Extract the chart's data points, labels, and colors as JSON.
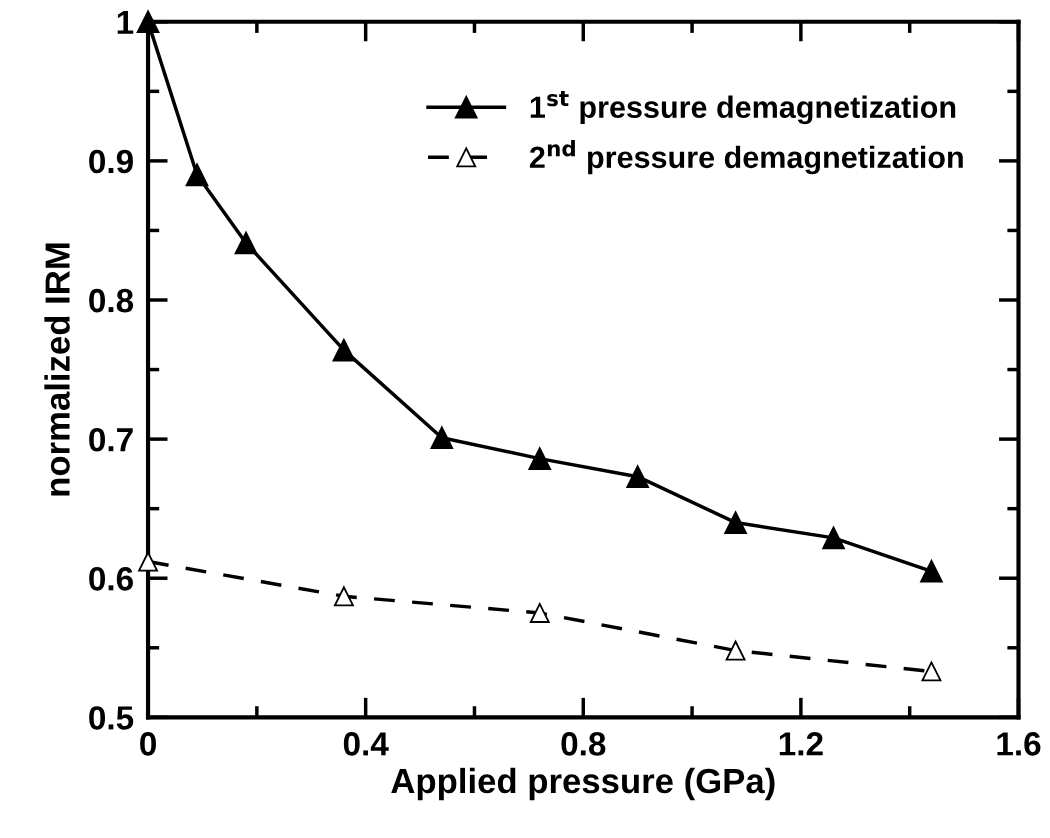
{
  "chart_data": {
    "type": "line",
    "xlabel": "Applied pressure (GPa)",
    "ylabel": "normalized IRM",
    "xlim": [
      0,
      1.6
    ],
    "xticks": [
      0,
      0.4,
      0.8,
      1.2,
      1.6
    ],
    "ylim": [
      0.5,
      1
    ],
    "yticks": [
      0.5,
      0.6,
      0.7,
      0.8,
      0.9,
      1
    ],
    "grid": false,
    "legend": "top right",
    "marker": "triangle",
    "series": [
      {
        "name": "1$^{st}$ pressure demagnetization",
        "color": "#000000",
        "line_style": "solid",
        "x": [
          0,
          0.09,
          0.18,
          0.36,
          0.54,
          0.72,
          0.9,
          1.08,
          1.26,
          1.44
        ],
        "values": [
          1.0,
          0.89,
          0.841,
          0.764,
          0.701,
          0.686,
          0.673,
          0.64,
          0.629,
          0.605
        ]
      },
      {
        "name": "2$^{nd}$ pressure demagnetization",
        "color": "#000000",
        "line_style": "dashed",
        "x": [
          0,
          0.36,
          0.72,
          1.08,
          1.44
        ],
        "values": [
          0.612,
          0.587,
          0.575,
          0.548,
          0.533
        ]
      }
    ]
  }
}
